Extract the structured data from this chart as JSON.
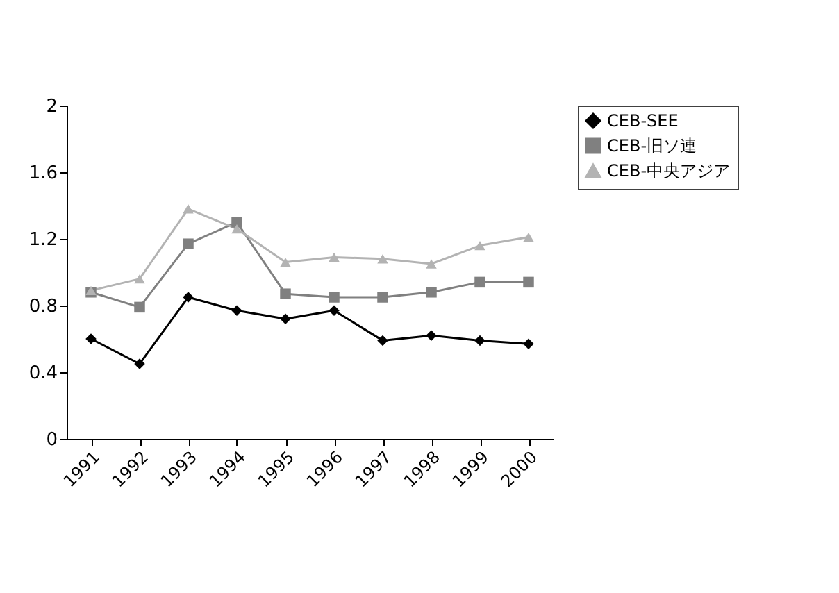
{
  "chart_data": {
    "type": "line",
    "categories": [
      "1991",
      "1992",
      "1993",
      "1994",
      "1995",
      "1996",
      "1997",
      "1998",
      "1999",
      "2000"
    ],
    "series": [
      {
        "name": "CEB-SEE",
        "color": "#000000",
        "marker": "diamond",
        "values": [
          0.6,
          0.45,
          0.85,
          0.77,
          0.72,
          0.77,
          0.59,
          0.62,
          0.59,
          0.57
        ]
      },
      {
        "name": "CEB-旧ソ連",
        "color": "#808080",
        "marker": "square",
        "values": [
          0.88,
          0.79,
          1.17,
          1.3,
          0.87,
          0.85,
          0.85,
          0.88,
          0.94,
          0.94
        ]
      },
      {
        "name": "CEB-中央アジア",
        "color": "#b3b3b3",
        "marker": "triangle",
        "values": [
          0.89,
          0.96,
          1.38,
          1.26,
          1.06,
          1.09,
          1.08,
          1.05,
          1.16,
          1.21
        ]
      }
    ],
    "ylim": [
      0,
      2
    ],
    "yticks": [
      0,
      0.4,
      0.8,
      1.2,
      1.6,
      2
    ],
    "grid": false,
    "legend": "right",
    "line_style": "solid"
  }
}
